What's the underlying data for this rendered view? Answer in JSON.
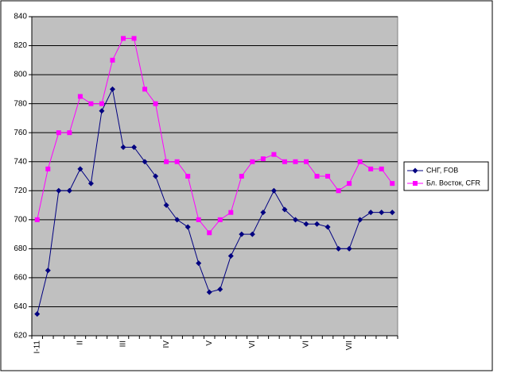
{
  "chart_data": {
    "type": "line",
    "categories": [
      "I-11",
      null,
      null,
      null,
      "II",
      null,
      null,
      null,
      "III",
      null,
      null,
      null,
      "IV",
      null,
      null,
      null,
      "V",
      null,
      null,
      null,
      "VI",
      null,
      null,
      null,
      null,
      "VI",
      null,
      null,
      null,
      "VII",
      null,
      null,
      null,
      null
    ],
    "series": [
      {
        "name": "СНГ, FOB",
        "color": "#000080",
        "marker": "diamond",
        "values": [
          635,
          665,
          720,
          720,
          735,
          725,
          775,
          790,
          750,
          750,
          740,
          730,
          710,
          700,
          695,
          670,
          650,
          652,
          675,
          690,
          690,
          705,
          720,
          707,
          700,
          697,
          697,
          695,
          680,
          680,
          700,
          705,
          705,
          705
        ]
      },
      {
        "name": "Бл. Восток, CFR",
        "color": "#ff00ff",
        "marker": "square",
        "values": [
          700,
          735,
          760,
          760,
          785,
          780,
          780,
          810,
          825,
          825,
          790,
          780,
          740,
          740,
          730,
          700,
          691,
          700,
          705,
          730,
          740,
          742,
          745,
          740,
          740,
          740,
          730,
          730,
          720,
          725,
          740,
          735,
          735,
          725
        ]
      }
    ],
    "ylim": [
      620,
      840
    ],
    "yticks": [
      620,
      640,
      660,
      680,
      700,
      720,
      740,
      760,
      780,
      800,
      820,
      840
    ],
    "grid": true,
    "legend": "right"
  }
}
